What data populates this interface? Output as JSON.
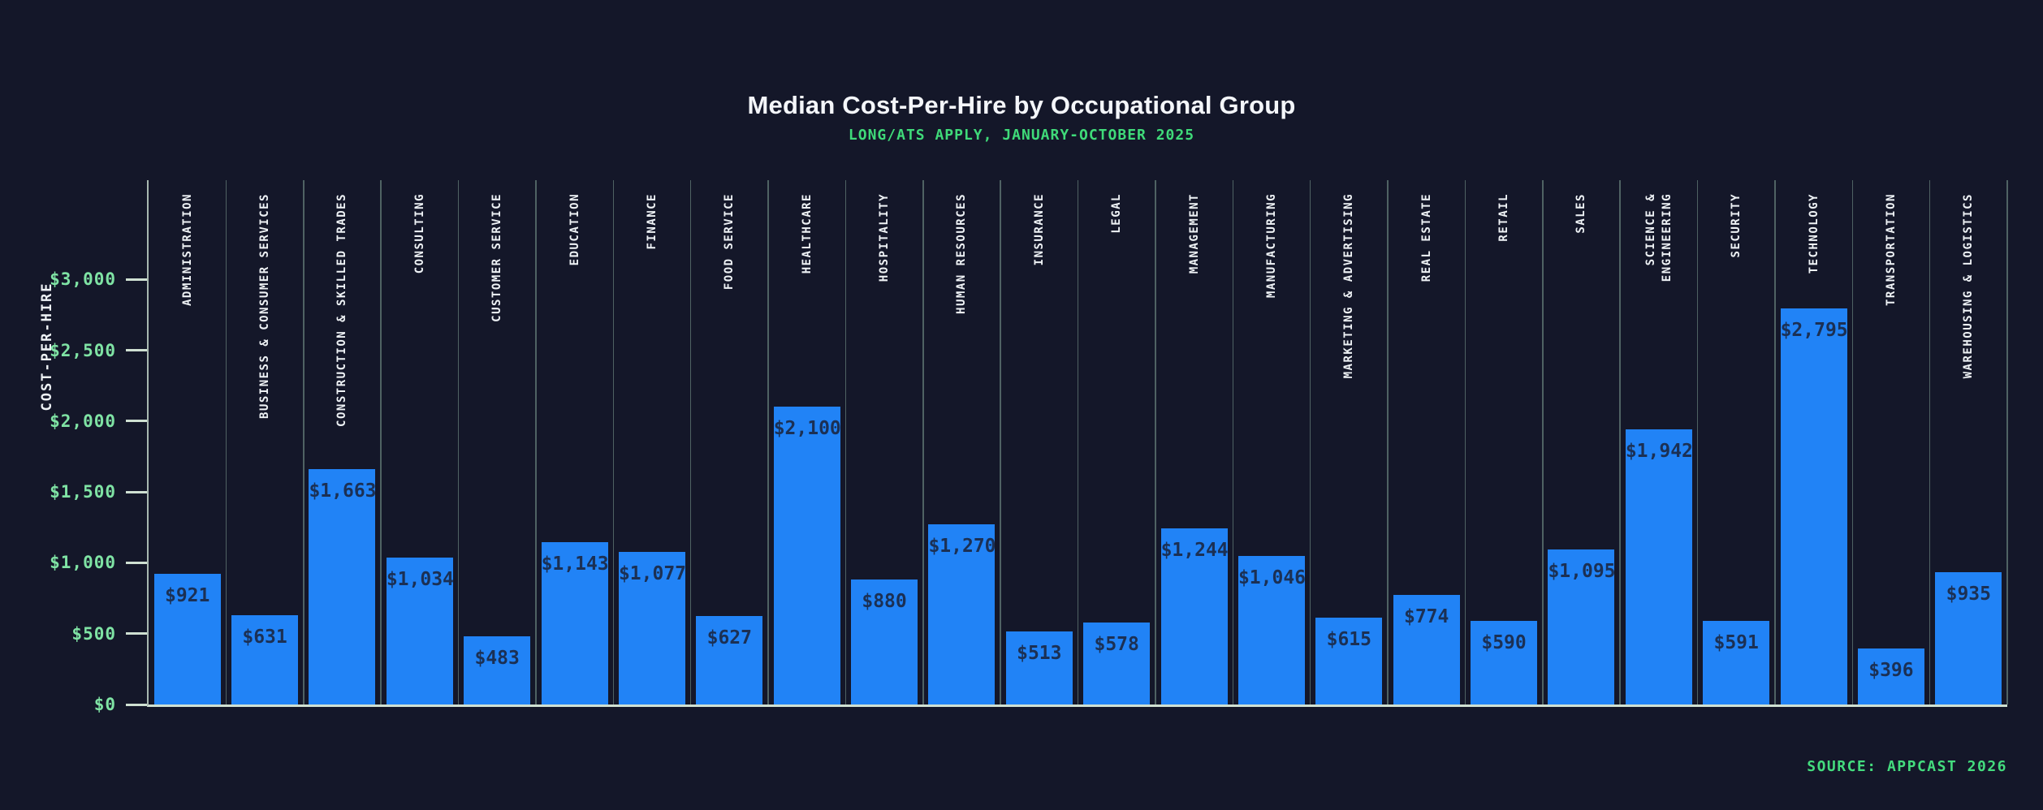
{
  "header": {
    "title": "Median Cost-Per-Hire by Occupational Group",
    "subtitle": "LONG/ATS APPLY, JANUARY-OCTOBER 2025"
  },
  "footer": {
    "source": "SOURCE: APPCAST 2026"
  },
  "colors": {
    "background": "#141729",
    "bar": "#2183f6",
    "bar_value_text": "#1b3054",
    "green_text": "#3fda79",
    "tick_text": "#7fe3a4",
    "white_text": "#eef2f5",
    "gridline": "rgba(150,190,170,0.45)",
    "axis": "#cfe0d2"
  },
  "chart_data": {
    "type": "bar",
    "title": "Median Cost-Per-Hire by Occupational Group",
    "subtitle": "LONG/ATS APPLY, JANUARY-OCTOBER 2025",
    "xlabel": "",
    "ylabel": "COST-PER-HIRE",
    "ylim": [
      0,
      3700
    ],
    "grid": "vertical-category-separators",
    "legend": "none",
    "categories": [
      "ADMINISTRATION",
      "BUSINESS & CONSUMER SERVICES",
      "CONSTRUCTION & SKILLED TRADES",
      "CONSULTING",
      "CUSTOMER SERVICE",
      "EDUCATION",
      "FINANCE",
      "FOOD SERVICE",
      "HEALTHCARE",
      "HOSPITALITY",
      "HUMAN RESOURCES",
      "INSURANCE",
      "LEGAL",
      "MANAGEMENT",
      "MANUFACTURING",
      "MARKETING & ADVERTISING",
      "REAL ESTATE",
      "RETAIL",
      "SALES",
      "SCIENCE &\nENGINEERING",
      "SECURITY",
      "TECHNOLOGY",
      "TRANSPORTATION",
      "WAREHOUSING & LOGISTICS"
    ],
    "values": [
      921,
      631,
      1663,
      1034,
      483,
      1143,
      1077,
      627,
      2100,
      880,
      1270,
      513,
      578,
      1244,
      1046,
      615,
      774,
      590,
      1095,
      1942,
      591,
      2795,
      396,
      935
    ],
    "value_labels": [
      "$921",
      "$631",
      "$1,663",
      "$1,034",
      "$483",
      "$1,143",
      "$1,077",
      "$627",
      "$2,100",
      "$880",
      "$1,270",
      "$513",
      "$578",
      "$1,244",
      "$1,046",
      "$615",
      "$774",
      "$590",
      "$1,095",
      "$1,942",
      "$591",
      "$2,795",
      "$396",
      "$935"
    ],
    "ytick_values": [
      0,
      500,
      1000,
      1500,
      2000,
      2500,
      3000
    ],
    "ytick_labels": [
      "$0",
      "$500",
      "$1,000",
      "$1,500",
      "$2,000",
      "$2,500",
      "$3,000"
    ]
  }
}
